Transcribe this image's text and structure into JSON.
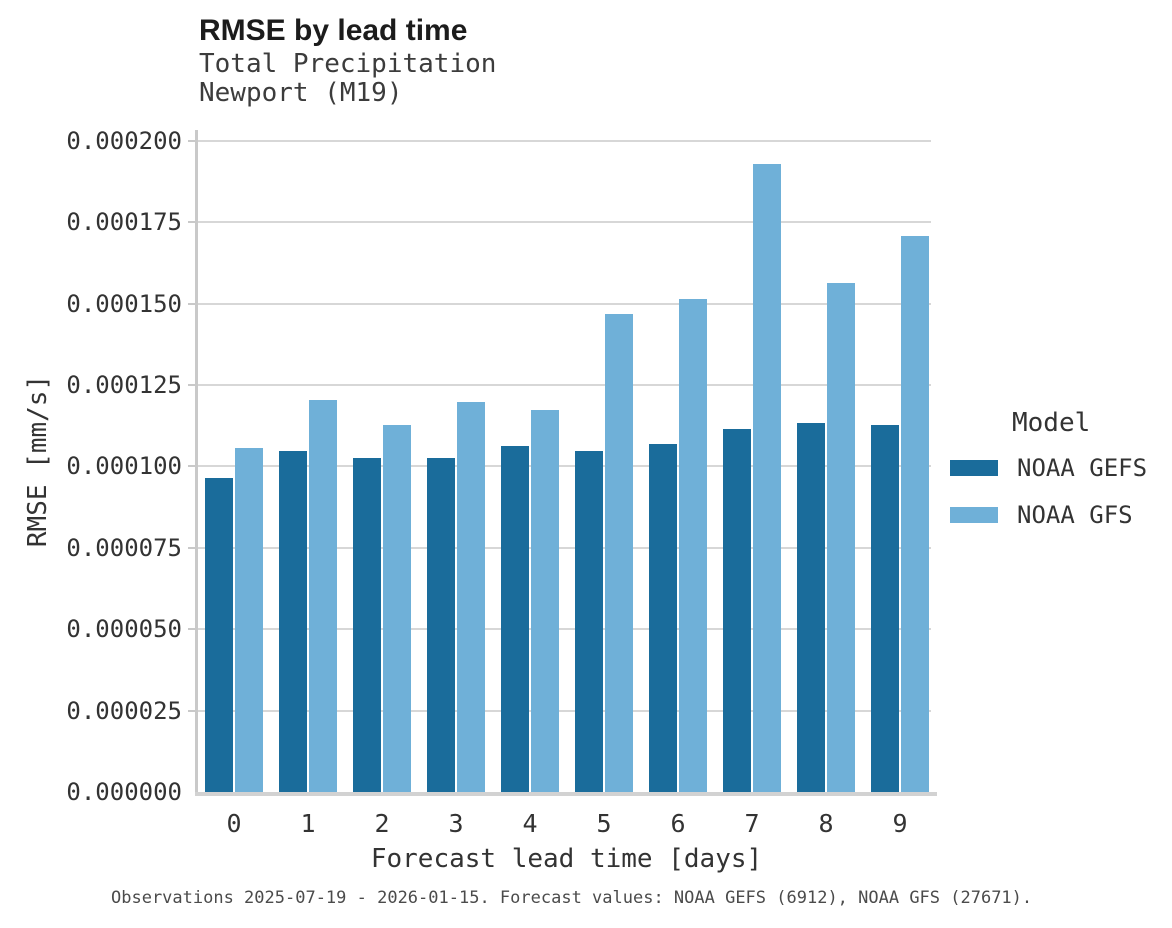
{
  "header": {
    "title": "RMSE by lead time",
    "subtitle_line1": "Total Precipitation",
    "subtitle_line2": "Newport (M19)"
  },
  "caption": "Observations 2025-07-19 - 2026-01-15. Forecast values: NOAA GEFS (6912), NOAA GFS (27671).",
  "legend": {
    "title": "Model",
    "entries": [
      {
        "label": "NOAA GEFS",
        "color": "#1a6c9b"
      },
      {
        "label": "NOAA GFS",
        "color": "#6fb0d8"
      }
    ]
  },
  "colors": {
    "noaa_gefs": "#1a6c9b",
    "noaa_gfs": "#6fb0d8",
    "gridline": "#d7d7d7",
    "axis_line": "#c9c9c9",
    "baseline": "#d2d2d2",
    "text": "#333333"
  },
  "chart_data": {
    "type": "bar",
    "title": "RMSE by lead time",
    "subtitle": [
      "Total Precipitation",
      "Newport (M19)"
    ],
    "xlabel": "Forecast lead time [days]",
    "ylabel": "RMSE [mm/s]",
    "categories": [
      "0",
      "1",
      "2",
      "3",
      "4",
      "5",
      "6",
      "7",
      "8",
      "9"
    ],
    "series": [
      {
        "name": "NOAA GEFS",
        "color": "#1a6c9b",
        "values": [
          9.65e-05,
          0.0001046,
          0.0001026,
          0.0001026,
          0.0001062,
          0.0001047,
          0.000107,
          0.0001114,
          0.0001132,
          0.0001128
        ]
      },
      {
        "name": "NOAA GFS",
        "color": "#6fb0d8",
        "values": [
          0.0001057,
          0.0001204,
          0.0001128,
          0.0001198,
          0.0001172,
          0.0001468,
          0.0001514,
          0.000193,
          0.0001563,
          0.0001708
        ]
      }
    ],
    "ylim": [
      0,
      0.000203
    ],
    "ytick_step": 2.5e-05,
    "ytick_labels": [
      "0.000000",
      "0.000025",
      "0.000050",
      "0.000075",
      "0.000100",
      "0.000125",
      "0.000150",
      "0.000175",
      "0.000200"
    ],
    "grid": "horizontal",
    "legend_position": "right",
    "legend_title": "Model"
  }
}
